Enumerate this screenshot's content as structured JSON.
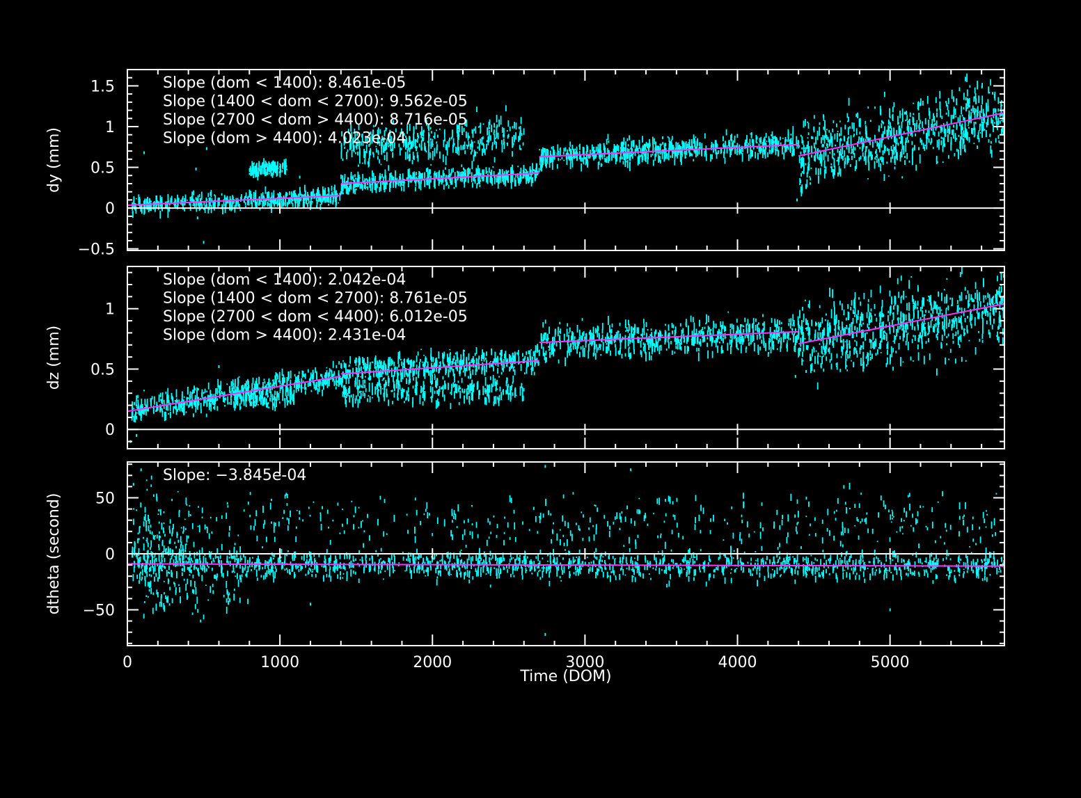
{
  "colors": {
    "background": "#000000",
    "frame": "#ffffff",
    "data": "#00ffff",
    "fit": "#ff33ff"
  },
  "xlabel": "Time (DOM)",
  "chart_data": [
    {
      "type": "scatter",
      "ylabel": "dy (mm)",
      "xlim": [
        0,
        5750
      ],
      "ylim": [
        -0.52,
        1.7
      ],
      "xticks": [
        0,
        1000,
        2000,
        3000,
        4000,
        5000
      ],
      "yticks": [
        -0.5,
        0,
        0.5,
        1,
        1.5
      ],
      "ytick_labels": [
        "−0.5",
        "0",
        "0.5",
        "1",
        "1.5"
      ],
      "zero_line": true,
      "annotations": [
        "Slope (dom < 1400): 8.461e-05",
        "Slope (1400 < dom < 2700): 9.562e-05",
        "Slope (2700 < dom > 4400): 8.716e-05",
        "Slope (dom > 4400): 4.023e-04"
      ],
      "series": [
        {
          "style": "scatter",
          "bands": [
            {
              "x": [
                30,
                1400
              ],
              "y": [
                0.03,
                0.14
              ],
              "noise": 0.05,
              "count": 450
            },
            {
              "x": [
                800,
                1050
              ],
              "y": [
                0.45,
                0.52
              ],
              "noise": 0.04,
              "count": 110
            },
            {
              "x": [
                1400,
                2700
              ],
              "y": [
                0.3,
                0.42
              ],
              "noise": 0.05,
              "count": 450
            },
            {
              "x": [
                1400,
                2600
              ],
              "y": [
                0.75,
                0.88
              ],
              "noise": 0.12,
              "count": 380
            },
            {
              "x": [
                2700,
                4400
              ],
              "y": [
                0.63,
                0.8
              ],
              "noise": 0.07,
              "count": 620
            },
            {
              "x": [
                4400,
                5750
              ],
              "y": [
                0.65,
                1.15
              ],
              "noise": 0.2,
              "count": 700
            }
          ],
          "outliers": [
            [
              110,
              0.68
            ],
            [
              450,
              0.48
            ],
            [
              520,
              0.73
            ],
            [
              460,
              -0.12
            ],
            [
              500,
              -0.42
            ],
            [
              1130,
              0.38
            ],
            [
              4390,
              0.1
            ],
            [
              4450,
              0.25
            ]
          ]
        },
        {
          "style": "line",
          "segments": [
            {
              "x": [
                0,
                1400
              ],
              "y": [
                0.035,
                0.153
              ]
            },
            {
              "x": [
                1400,
                2700
              ],
              "y": [
                0.3,
                0.43
              ]
            },
            {
              "x": [
                2700,
                4400
              ],
              "y": [
                0.63,
                0.78
              ]
            },
            {
              "x": [
                4400,
                5750
              ],
              "y": [
                0.64,
                1.17
              ]
            }
          ]
        }
      ]
    },
    {
      "type": "scatter",
      "ylabel": "dz (mm)",
      "xlim": [
        0,
        5750
      ],
      "ylim": [
        -0.16,
        1.35
      ],
      "xticks": [
        0,
        1000,
        2000,
        3000,
        4000,
        5000
      ],
      "yticks": [
        0,
        0.5,
        1
      ],
      "ytick_labels": [
        "0",
        "0.5",
        "1"
      ],
      "zero_line": true,
      "annotations": [
        "Slope (dom < 1400): 2.042e-04",
        "Slope (1400 < dom < 2700): 8.761e-05",
        "Slope (2700 < dom < 4400): 6.012e-05",
        "Slope (dom > 4400): 2.431e-04"
      ],
      "series": [
        {
          "style": "scatter",
          "bands": [
            {
              "x": [
                30,
                1400
              ],
              "y": [
                0.16,
                0.44
              ],
              "noise": 0.05,
              "count": 550
            },
            {
              "x": [
                700,
                1100
              ],
              "y": [
                0.22,
                0.26
              ],
              "noise": 0.03,
              "count": 90
            },
            {
              "x": [
                1400,
                2700
              ],
              "y": [
                0.48,
                0.58
              ],
              "noise": 0.05,
              "count": 480
            },
            {
              "x": [
                1400,
                2600
              ],
              "y": [
                0.32,
                0.32
              ],
              "noise": 0.05,
              "count": 300
            },
            {
              "x": [
                2700,
                4400
              ],
              "y": [
                0.72,
                0.8
              ],
              "noise": 0.07,
              "count": 650
            },
            {
              "x": [
                4400,
                5750
              ],
              "y": [
                0.72,
                1.02
              ],
              "noise": 0.16,
              "count": 720
            }
          ],
          "outliers": [
            [
              20,
              -0.1
            ],
            [
              60,
              -0.05
            ],
            [
              600,
              0.52
            ],
            [
              4380,
              0.44
            ],
            [
              4450,
              0.48
            ]
          ]
        },
        {
          "style": "line",
          "segments": [
            {
              "x": [
                0,
                1400
              ],
              "y": [
                0.15,
                0.44
              ]
            },
            {
              "x": [
                1400,
                2700
              ],
              "y": [
                0.46,
                0.57
              ]
            },
            {
              "x": [
                2700,
                4400
              ],
              "y": [
                0.72,
                0.81
              ]
            },
            {
              "x": [
                4400,
                5750
              ],
              "y": [
                0.71,
                1.04
              ]
            }
          ]
        }
      ]
    },
    {
      "type": "scatter",
      "ylabel": "dtheta (second)",
      "xlim": [
        0,
        5750
      ],
      "ylim": [
        -82,
        82
      ],
      "xticks": [
        0,
        1000,
        2000,
        3000,
        4000,
        5000
      ],
      "xtick_labels": [
        "0",
        "1000",
        "2000",
        "3000",
        "4000",
        "5000"
      ],
      "yticks": [
        -50,
        0,
        50
      ],
      "ytick_labels": [
        "−50",
        "0",
        "50"
      ],
      "zero_line": true,
      "annotations": [
        "Slope: −3.845e-04"
      ],
      "series": [
        {
          "style": "scatter",
          "bands": [
            {
              "x": [
                30,
                5750
              ],
              "y": [
                -9,
                -11
              ],
              "noise": 6,
              "count": 1500
            },
            {
              "x": [
                30,
                400
              ],
              "y": [
                15,
                10
              ],
              "noise": 22,
              "count": 160
            },
            {
              "x": [
                400,
                5700
              ],
              "y": [
                28,
                28
              ],
              "noise": 12,
              "count": 420
            },
            {
              "x": [
                100,
                800
              ],
              "y": [
                -30,
                -30
              ],
              "noise": 12,
              "count": 90
            }
          ],
          "outliers": [
            [
              40,
              62
            ],
            [
              90,
              75
            ],
            [
              2740,
              78
            ],
            [
              2740,
              -72
            ],
            [
              480,
              -60
            ],
            [
              5000,
              -50
            ],
            [
              1200,
              -45
            ],
            [
              3300,
              75
            ]
          ]
        },
        {
          "style": "line",
          "segments": [
            {
              "x": [
                0,
                5750
              ],
              "y": [
                -9,
                -11
              ]
            }
          ]
        }
      ]
    }
  ]
}
